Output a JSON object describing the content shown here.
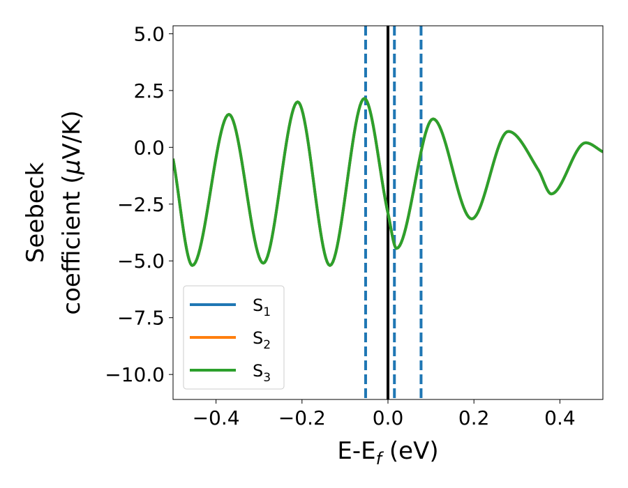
{
  "chart_data": {
    "type": "line",
    "title": "",
    "xlabel": {
      "base": "E-E",
      "sub": "f",
      "rest": " (eV)"
    },
    "ylabel": {
      "line1": "Seebeck",
      "line2_prefix": "coefficient  (",
      "mu": "μ",
      "line2_suffix": "V/K)"
    },
    "xlim": [
      -0.5,
      0.5
    ],
    "ylim": [
      -11.1,
      5.35
    ],
    "xticks": [
      -0.4,
      -0.2,
      0.0,
      0.2,
      0.4
    ],
    "xtick_labels": [
      "−0.4",
      "−0.2",
      "0.0",
      "0.2",
      "0.4"
    ],
    "yticks": [
      5.0,
      2.5,
      0.0,
      -2.5,
      -5.0,
      -7.5,
      -10.0
    ],
    "ytick_labels": [
      "5.0",
      "2.5",
      "0.0",
      "−2.5",
      "−5.0",
      "−7.5",
      "−10.0"
    ],
    "grid": false,
    "legend_position": "lower-left",
    "reference_lines": [
      {
        "x": 0.0,
        "style": "solid",
        "color": "#000000"
      },
      {
        "x": -0.052,
        "style": "dashed",
        "color": "#1f77b4"
      },
      {
        "x": 0.015,
        "style": "dashed",
        "color": "#1f77b4"
      },
      {
        "x": 0.077,
        "style": "dashed",
        "color": "#1f77b4"
      }
    ],
    "series": [
      {
        "name": "S",
        "sub": "1",
        "color": "#1f77b4"
      },
      {
        "name": "S",
        "sub": "2",
        "color": "#ff7f0e"
      },
      {
        "name": "S",
        "sub": "3",
        "color": "#2ca02c"
      }
    ],
    "curve": {
      "x": [
        -0.5,
        -0.455,
        -0.37,
        -0.29,
        -0.21,
        -0.135,
        -0.055,
        0.0,
        0.02,
        0.105,
        0.195,
        0.28,
        0.35,
        0.38,
        0.46,
        0.5
      ],
      "y": [
        -0.5,
        -5.2,
        1.45,
        -5.1,
        2.0,
        -5.2,
        2.15,
        -2.9,
        -4.45,
        1.25,
        -3.15,
        0.7,
        -1.0,
        -2.05,
        0.2,
        -0.2
      ]
    }
  }
}
